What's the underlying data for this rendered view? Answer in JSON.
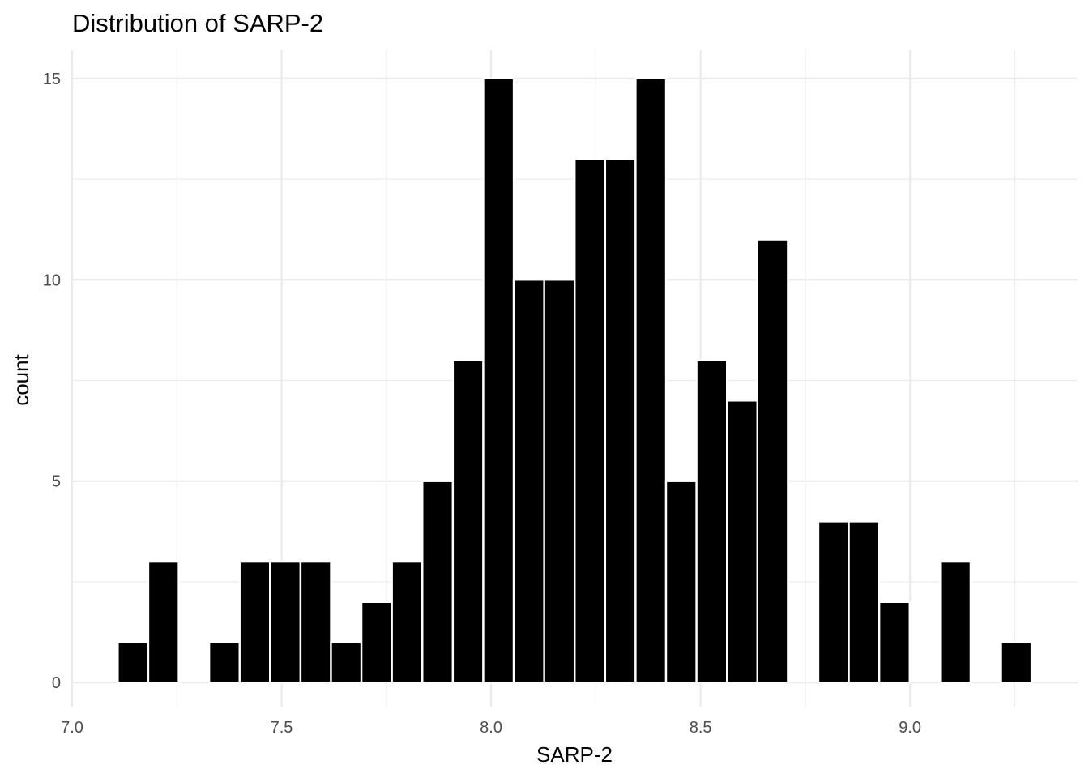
{
  "chart_data": {
    "type": "bar",
    "title": "Distribution of SARP-2",
    "xlabel": "SARP-2",
    "ylabel": "count",
    "xlim": [
      7.0,
      9.4
    ],
    "ylim": [
      -0.6,
      15.7
    ],
    "x_ticks": [
      7.0,
      7.5,
      8.0,
      8.5,
      9.0
    ],
    "x_tick_labels": [
      "7.0",
      "7.5",
      "8.0",
      "8.5",
      "9.0"
    ],
    "y_ticks": [
      0,
      5,
      10,
      15
    ],
    "y_tick_labels": [
      "0",
      "5",
      "10",
      "15"
    ],
    "bin_width": 0.0727,
    "bins_start": 7.109,
    "counts": [
      1,
      3,
      0,
      1,
      3,
      3,
      3,
      1,
      2,
      3,
      5,
      8,
      15,
      10,
      10,
      13,
      13,
      15,
      5,
      8,
      7,
      11,
      0,
      4,
      4,
      2,
      0,
      3,
      0,
      1
    ],
    "grid": true,
    "bar_fill": "#000000",
    "bar_outline": "#ffffff",
    "grid_color": "#ebebeb"
  }
}
